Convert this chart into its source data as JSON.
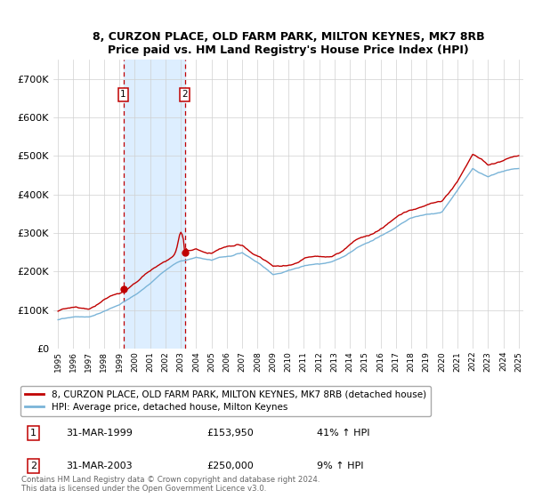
{
  "title_line1": "8, CURZON PLACE, OLD FARM PARK, MILTON KEYNES, MK7 8RB",
  "title_line2": "Price paid vs. HM Land Registry's House Price Index (HPI)",
  "ylim": [
    0,
    750000
  ],
  "yticks": [
    0,
    100000,
    200000,
    300000,
    400000,
    500000,
    600000,
    700000
  ],
  "ytick_labels": [
    "£0",
    "£100K",
    "£200K",
    "£300K",
    "£400K",
    "£500K",
    "£600K",
    "£700K"
  ],
  "sale1_date": 1999.25,
  "sale1_price": 153950,
  "sale2_date": 2003.25,
  "sale2_price": 250000,
  "hpi_color": "#7ab4d8",
  "price_color": "#c00000",
  "shade_color": "#ddeeff",
  "legend_line1": "8, CURZON PLACE, OLD FARM PARK, MILTON KEYNES, MK7 8RB (detached house)",
  "legend_line2": "HPI: Average price, detached house, Milton Keynes",
  "table_entries": [
    {
      "label": "1",
      "date": "31-MAR-1999",
      "price": "£153,950",
      "change": "41% ↑ HPI"
    },
    {
      "label": "2",
      "date": "31-MAR-2003",
      "price": "£250,000",
      "change": "9% ↑ HPI"
    }
  ],
  "footer": "Contains HM Land Registry data © Crown copyright and database right 2024.\nThis data is licensed under the Open Government Licence v3.0.",
  "background_color": "#ffffff",
  "grid_color": "#d0d0d0",
  "xstart": 1995,
  "xend": 2025
}
